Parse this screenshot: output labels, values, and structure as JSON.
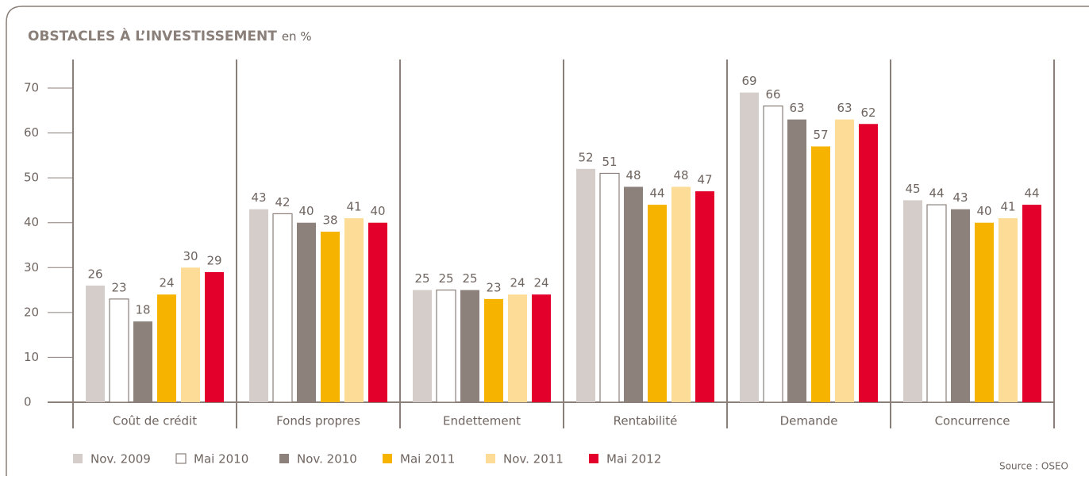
{
  "chart_data": {
    "type": "bar",
    "title": "OBSTACLES À L’INVESTISSEMENT",
    "subtitle": "en %",
    "source": "Source : OSEO",
    "categories": [
      "Coût de crédit",
      "Fonds propres",
      "Endettement",
      "Rentabilité",
      "Demande",
      "Concurrence"
    ],
    "series": [
      {
        "name": "Nov. 2009",
        "color": "#d5cdc9",
        "values": [
          26,
          43,
          25,
          52,
          69,
          45
        ]
      },
      {
        "name": "Mai 2010",
        "color": "#ffffff",
        "edgecolor": "#8a7f79",
        "values": [
          23,
          42,
          25,
          51,
          66,
          44
        ]
      },
      {
        "name": "Nov. 2010",
        "color": "#8c817b",
        "values": [
          18,
          40,
          25,
          48,
          63,
          43
        ]
      },
      {
        "name": "Mai 2011",
        "color": "#f6b400",
        "values": [
          24,
          38,
          23,
          44,
          57,
          40
        ]
      },
      {
        "name": "Nov. 2011",
        "color": "#fddc98",
        "values": [
          30,
          41,
          24,
          48,
          63,
          41
        ]
      },
      {
        "name": "Mai 2012",
        "color": "#e3002b",
        "values": [
          29,
          40,
          24,
          47,
          62,
          44
        ]
      }
    ],
    "ylim": [
      0,
      70
    ],
    "yticks": [
      0,
      10,
      20,
      30,
      40,
      50,
      60,
      70
    ],
    "grid": false,
    "legend": "bottom"
  }
}
